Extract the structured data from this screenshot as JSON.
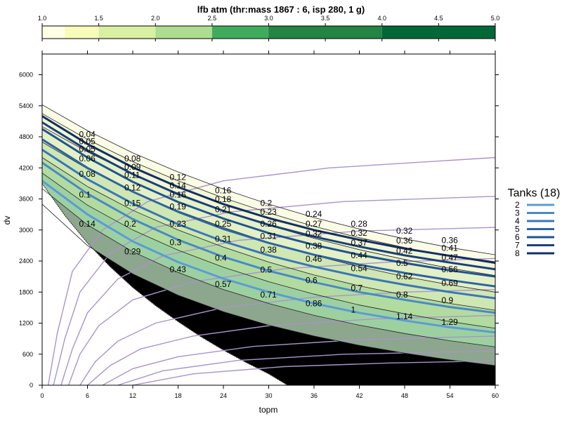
{
  "chart_data": {
    "type": "line",
    "title": "lfb atm (thr:mass 1867 : 6, isp 280, 1 g)",
    "xlabel": "topm",
    "ylabel": "dv",
    "xlim": [
      0,
      60
    ],
    "ylim": [
      0,
      6400
    ],
    "x_ticks": [
      "0",
      "6",
      "12",
      "18",
      "24",
      "30",
      "36",
      "42",
      "48",
      "54",
      "60"
    ],
    "y_ticks": [
      "0",
      "600",
      "1200",
      "1800",
      "2400",
      "3000",
      "3600",
      "4200",
      "4800",
      "5400",
      "6000"
    ],
    "grid": false,
    "colorkey": {
      "ticks": [
        "1.0",
        "1.5",
        "2.0",
        "2.5",
        "3.0",
        "3.5",
        "4.0",
        "4.5",
        "5.0"
      ],
      "breaks": [
        1.0,
        1.2,
        1.5,
        2.0,
        2.5,
        3.0,
        4.0,
        5.0
      ],
      "colors": [
        "#ffffe5",
        "#f7fcb9",
        "#d9f0a3",
        "#addd8e",
        "#41ab5d",
        "#238443",
        "#006837"
      ]
    },
    "fill_colors": [
      "#fbfce6",
      "#f1f7d4",
      "#e4f1c6",
      "#cfe7b3",
      "#b2dba0",
      "#9dd0a1",
      "#8da68e"
    ],
    "legend": {
      "title": "Tanks (18)",
      "position": "right",
      "entries": [
        "2",
        "3",
        "4",
        "5",
        "6",
        "7",
        "8"
      ],
      "colors": [
        "#5b9bd5",
        "#4a88c7",
        "#3a76b8",
        "#2d64a6",
        "#225294",
        "#1a3f7e",
        "#132d66"
      ]
    },
    "contours": [
      {
        "name": "",
        "x": [
          0,
          6,
          12,
          18,
          24,
          30,
          36,
          42,
          48,
          54,
          60
        ],
        "y": [
          5420,
          4920,
          4490,
          4120,
          3790,
          3500,
          3240,
          3020,
          2830,
          2660,
          2520
        ]
      },
      {
        "name": "",
        "x": [
          0,
          6,
          12,
          18,
          24,
          30,
          36,
          42,
          48,
          54,
          60
        ],
        "y": [
          5250,
          4750,
          4320,
          3950,
          3620,
          3330,
          3070,
          2850,
          2660,
          2490,
          2350
        ]
      },
      {
        "name": "",
        "x": [
          0,
          6,
          12,
          18,
          24,
          30,
          36,
          42,
          48,
          54,
          60
        ],
        "y": [
          5000,
          4510,
          4080,
          3710,
          3380,
          3090,
          2840,
          2620,
          2430,
          2260,
          2120
        ]
      },
      {
        "name": "",
        "x": [
          0,
          6,
          12,
          18,
          24,
          30,
          36,
          42,
          48,
          54,
          60
        ],
        "y": [
          4700,
          4180,
          3740,
          3370,
          3050,
          2760,
          2510,
          2290,
          2100,
          1940,
          1800
        ]
      },
      {
        "name": "",
        "x": [
          0,
          6,
          12,
          18,
          24,
          30,
          36,
          42,
          48,
          54,
          60
        ],
        "y": [
          4400,
          3840,
          3380,
          3000,
          2670,
          2380,
          2130,
          1920,
          1740,
          1580,
          1450
        ]
      },
      {
        "name": "",
        "x": [
          0,
          6,
          12,
          18,
          24,
          30,
          36,
          42,
          48,
          54,
          60
        ],
        "y": [
          4100,
          3480,
          3000,
          2610,
          2280,
          2000,
          1760,
          1550,
          1380,
          1230,
          1100
        ]
      },
      {
        "name": "",
        "x": [
          0,
          6,
          12,
          18,
          24,
          30,
          36,
          42,
          48,
          54,
          60
        ],
        "y": [
          3800,
          3100,
          2580,
          2180,
          1850,
          1580,
          1350,
          1160,
          1000,
          860,
          740
        ]
      },
      {
        "name": "",
        "x": [
          0,
          6,
          12,
          18,
          24,
          30,
          36,
          42,
          48,
          54,
          60
        ],
        "y": [
          3500,
          2700,
          2150,
          1740,
          1420,
          1160,
          950,
          770,
          620,
          490,
          380
        ]
      }
    ],
    "boundary": {
      "x": [
        0,
        3,
        6,
        9,
        12,
        15,
        18,
        21,
        24,
        27,
        30,
        32.5
      ],
      "y": [
        3900,
        3280,
        2750,
        2290,
        1890,
        1540,
        1230,
        940,
        680,
        440,
        220,
        0
      ]
    },
    "series": [
      {
        "name": "2",
        "x": [
          0,
          6,
          12,
          18,
          24,
          30,
          36,
          42,
          48,
          54,
          60
        ],
        "y": [
          3950,
          3300,
          2780,
          2380,
          2060,
          1800,
          1580,
          1400,
          1250,
          1120,
          1020
        ]
      },
      {
        "name": "3",
        "x": [
          0,
          6,
          12,
          18,
          24,
          30,
          36,
          42,
          48,
          54,
          60
        ],
        "y": [
          4300,
          3700,
          3210,
          2810,
          2480,
          2210,
          1990,
          1800,
          1650,
          1510,
          1400
        ]
      },
      {
        "name": "4",
        "x": [
          0,
          6,
          12,
          18,
          24,
          30,
          36,
          42,
          48,
          54,
          60
        ],
        "y": [
          4550,
          3980,
          3510,
          3110,
          2780,
          2510,
          2290,
          2100,
          1940,
          1800,
          1680
        ]
      },
      {
        "name": "5",
        "x": [
          0,
          6,
          12,
          18,
          24,
          30,
          36,
          42,
          48,
          54,
          60
        ],
        "y": [
          4750,
          4200,
          3740,
          3350,
          3020,
          2750,
          2520,
          2330,
          2170,
          2030,
          1910
        ]
      },
      {
        "name": "6",
        "x": [
          0,
          6,
          12,
          18,
          24,
          30,
          36,
          42,
          48,
          54,
          60
        ],
        "y": [
          4950,
          4400,
          3930,
          3540,
          3220,
          2940,
          2710,
          2520,
          2360,
          2220,
          2100
        ]
      },
      {
        "name": "7",
        "x": [
          0,
          6,
          12,
          18,
          24,
          30,
          36,
          42,
          48,
          54,
          60
        ],
        "y": [
          5080,
          4540,
          4080,
          3690,
          3370,
          3100,
          2870,
          2680,
          2510,
          2370,
          2240
        ]
      },
      {
        "name": "8",
        "x": [
          0,
          6,
          12,
          18,
          24,
          30,
          36,
          42,
          48,
          54,
          60
        ],
        "y": [
          5200,
          4660,
          4210,
          3830,
          3500,
          3230,
          3000,
          2810,
          2640,
          2500,
          2370
        ]
      }
    ],
    "guides": [
      {
        "x": [
          0.8,
          2,
          4,
          8,
          14,
          24,
          38,
          60
        ],
        "y": [
          0,
          1000,
          2200,
          3000,
          3550,
          3950,
          4200,
          4400
        ]
      },
      {
        "x": [
          1.5,
          3,
          5,
          9,
          15,
          25,
          40,
          60
        ],
        "y": [
          0,
          900,
          1800,
          2550,
          3050,
          3350,
          3550,
          3650
        ]
      },
      {
        "x": [
          2.5,
          4,
          6,
          10,
          16,
          26,
          42,
          60
        ],
        "y": [
          0,
          700,
          1400,
          2050,
          2500,
          2800,
          2980,
          3050
        ]
      },
      {
        "x": [
          3.5,
          5,
          7.5,
          12,
          20,
          32,
          46,
          60
        ],
        "y": [
          0,
          600,
          1150,
          1650,
          2000,
          2250,
          2380,
          2450
        ]
      },
      {
        "x": [
          5,
          7,
          10,
          15,
          24,
          36,
          48,
          60
        ],
        "y": [
          0,
          450,
          850,
          1200,
          1500,
          1700,
          1800,
          1850
        ]
      },
      {
        "x": [
          6,
          9,
          13,
          20,
          30,
          44,
          60
        ],
        "y": [
          0,
          380,
          700,
          950,
          1150,
          1280,
          1350
        ]
      },
      {
        "x": [
          8,
          12,
          18,
          28,
          42,
          60
        ],
        "y": [
          0,
          320,
          550,
          750,
          880,
          950
        ]
      },
      {
        "x": [
          10,
          16,
          26,
          40,
          60
        ],
        "y": [
          0,
          280,
          480,
          600,
          660
        ]
      },
      {
        "x": [
          12,
          20,
          32,
          46,
          60
        ],
        "y": [
          0,
          220,
          360,
          430,
          470
        ]
      }
    ],
    "value_labels": [
      {
        "text": "0.04",
        "x": 6,
        "y": 4850
      },
      {
        "text": "0.05",
        "x": 6,
        "y": 4710
      },
      {
        "text": "0.05",
        "x": 6,
        "y": 4560
      },
      {
        "text": "0.06",
        "x": 6,
        "y": 4380
      },
      {
        "text": "0.08",
        "x": 6,
        "y": 4080
      },
      {
        "text": "0.1",
        "x": 6,
        "y": 3680
      },
      {
        "text": "0.14",
        "x": 6,
        "y": 3120
      },
      {
        "text": "0.08",
        "x": 12,
        "y": 4380
      },
      {
        "text": "0.09",
        "x": 12,
        "y": 4220
      },
      {
        "text": "0.11",
        "x": 12,
        "y": 4060
      },
      {
        "text": "0.12",
        "x": 12,
        "y": 3820
      },
      {
        "text": "0.15",
        "x": 12,
        "y": 3520
      },
      {
        "text": "0.2",
        "x": 12,
        "y": 3120
      },
      {
        "text": "0.29",
        "x": 12,
        "y": 2580
      },
      {
        "text": "0.12",
        "x": 18,
        "y": 4020
      },
      {
        "text": "0.14",
        "x": 18,
        "y": 3860
      },
      {
        "text": "0.16",
        "x": 18,
        "y": 3680
      },
      {
        "text": "0.19",
        "x": 18,
        "y": 3450
      },
      {
        "text": "0.23",
        "x": 18,
        "y": 3120
      },
      {
        "text": "0.3",
        "x": 18,
        "y": 2760
      },
      {
        "text": "0.43",
        "x": 18,
        "y": 2240
      },
      {
        "text": "0.16",
        "x": 24,
        "y": 3760
      },
      {
        "text": "0.18",
        "x": 24,
        "y": 3590
      },
      {
        "text": "0.21",
        "x": 24,
        "y": 3400
      },
      {
        "text": "0.25",
        "x": 24,
        "y": 3120
      },
      {
        "text": "0.31",
        "x": 24,
        "y": 2830
      },
      {
        "text": "0.4",
        "x": 24,
        "y": 2460
      },
      {
        "text": "0.57",
        "x": 24,
        "y": 1950
      },
      {
        "text": "0.2",
        "x": 30,
        "y": 3520
      },
      {
        "text": "0.23",
        "x": 30,
        "y": 3350
      },
      {
        "text": "0.26",
        "x": 30,
        "y": 3120
      },
      {
        "text": "0.31",
        "x": 30,
        "y": 2880
      },
      {
        "text": "0.38",
        "x": 30,
        "y": 2620
      },
      {
        "text": "0.5",
        "x": 30,
        "y": 2230
      },
      {
        "text": "0.71",
        "x": 30,
        "y": 1750
      },
      {
        "text": "0.24",
        "x": 36,
        "y": 3310
      },
      {
        "text": "0.27",
        "x": 36,
        "y": 3120
      },
      {
        "text": "0.32",
        "x": 36,
        "y": 2930
      },
      {
        "text": "0.38",
        "x": 36,
        "y": 2690
      },
      {
        "text": "0.46",
        "x": 36,
        "y": 2440
      },
      {
        "text": "0.6",
        "x": 36,
        "y": 2030
      },
      {
        "text": "0.86",
        "x": 36,
        "y": 1580
      },
      {
        "text": "0.28",
        "x": 42,
        "y": 3120
      },
      {
        "text": "0.32",
        "x": 42,
        "y": 2940
      },
      {
        "text": "0.37",
        "x": 42,
        "y": 2750
      },
      {
        "text": "0.44",
        "x": 42,
        "y": 2510
      },
      {
        "text": "0.54",
        "x": 42,
        "y": 2260
      },
      {
        "text": "0.7",
        "x": 42,
        "y": 1880
      },
      {
        "text": "1",
        "x": 42,
        "y": 1460
      },
      {
        "text": "0.32",
        "x": 48,
        "y": 2980
      },
      {
        "text": "0.36",
        "x": 48,
        "y": 2790
      },
      {
        "text": "0.42",
        "x": 48,
        "y": 2600
      },
      {
        "text": "0.5",
        "x": 48,
        "y": 2360
      },
      {
        "text": "0.62",
        "x": 48,
        "y": 2100
      },
      {
        "text": "0.8",
        "x": 48,
        "y": 1750
      },
      {
        "text": "1.14",
        "x": 48,
        "y": 1330
      },
      {
        "text": "0.36",
        "x": 54,
        "y": 2800
      },
      {
        "text": "0.41",
        "x": 54,
        "y": 2650
      },
      {
        "text": "0.47",
        "x": 54,
        "y": 2470
      },
      {
        "text": "0.56",
        "x": 54,
        "y": 2240
      },
      {
        "text": "0.69",
        "x": 54,
        "y": 1970
      },
      {
        "text": "0.9",
        "x": 54,
        "y": 1640
      },
      {
        "text": "1.29",
        "x": 54,
        "y": 1220
      }
    ]
  }
}
